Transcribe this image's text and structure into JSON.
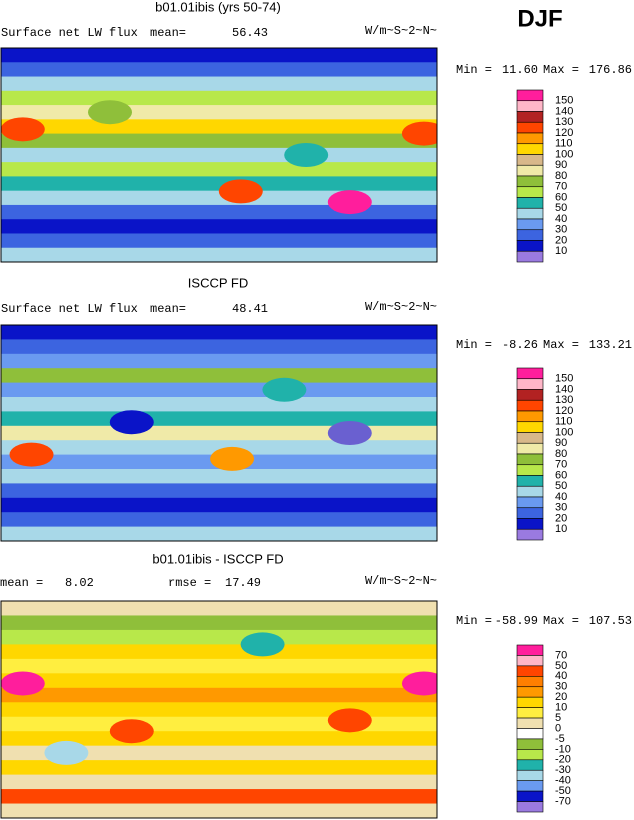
{
  "header": {
    "label": "DJF"
  },
  "panels": [
    {
      "title": "b01.01ibis (yrs 50-74)",
      "variable": "Surface net LW flux",
      "stats": [
        {
          "label": "mean=",
          "value": "56.43"
        }
      ],
      "units": "W/m~S~2~N~",
      "min_label": "Min =",
      "min": "11.60",
      "max_label": "Max =",
      "max": "176.86",
      "colorbar": {
        "labels": [
          "150",
          "140",
          "130",
          "120",
          "110",
          "100",
          "90",
          "80",
          "70",
          "60",
          "50",
          "40",
          "30",
          "20",
          "10"
        ],
        "colors": [
          "#ff1e9c",
          "#ffb6c8",
          "#b22222",
          "#ff4500",
          "#ff9900",
          "#ffd700",
          "#d8b88a",
          "#f0eaa8",
          "#8fbf3a",
          "#b8e84a",
          "#20b2aa",
          "#a8d8e8",
          "#6a9af0",
          "#3c64e0",
          "#0a14c8",
          "#9a7ae0"
        ]
      }
    },
    {
      "title": "ISCCP FD",
      "variable": "Surface net LW flux",
      "stats": [
        {
          "label": "mean=",
          "value": "48.41"
        }
      ],
      "units": "W/m~S~2~N~",
      "min_label": "Min =",
      "min": "-8.26",
      "max_label": "Max =",
      "max": "133.21",
      "colorbar": {
        "labels": [
          "150",
          "140",
          "130",
          "120",
          "110",
          "100",
          "90",
          "80",
          "70",
          "60",
          "50",
          "40",
          "30",
          "20",
          "10"
        ],
        "colors": [
          "#ff1e9c",
          "#ffb6c8",
          "#b22222",
          "#ff4500",
          "#ff9900",
          "#ffd700",
          "#d8b88a",
          "#f0eaa8",
          "#8fbf3a",
          "#b8e84a",
          "#20b2aa",
          "#a8d8e8",
          "#6a9af0",
          "#3c64e0",
          "#0a14c8",
          "#9a7ae0"
        ]
      }
    },
    {
      "title": "b01.01ibis - ISCCP FD",
      "stats": [
        {
          "label": "mean =",
          "value": "8.02"
        },
        {
          "label": "rmse =",
          "value": "17.49"
        }
      ],
      "units": "W/m~S~2~N~",
      "min_label": "Min =",
      "min": "-58.99",
      "max_label": "Max =",
      "max": "107.53",
      "colorbar": {
        "labels": [
          "70",
          "50",
          "40",
          "30",
          "20",
          "10",
          "5",
          "0",
          "-5",
          "-10",
          "-20",
          "-30",
          "-40",
          "-50",
          "-70"
        ],
        "colors": [
          "#ff1e9c",
          "#ffb6c8",
          "#ff4500",
          "#ff7f00",
          "#ff9900",
          "#ffd700",
          "#ffee40",
          "#f0e0b0",
          "#ffffff",
          "#8fbf3a",
          "#b8e84a",
          "#20b2aa",
          "#a8d8e8",
          "#6a9af0",
          "#0a14c8",
          "#9a7ae0"
        ]
      }
    }
  ]
}
